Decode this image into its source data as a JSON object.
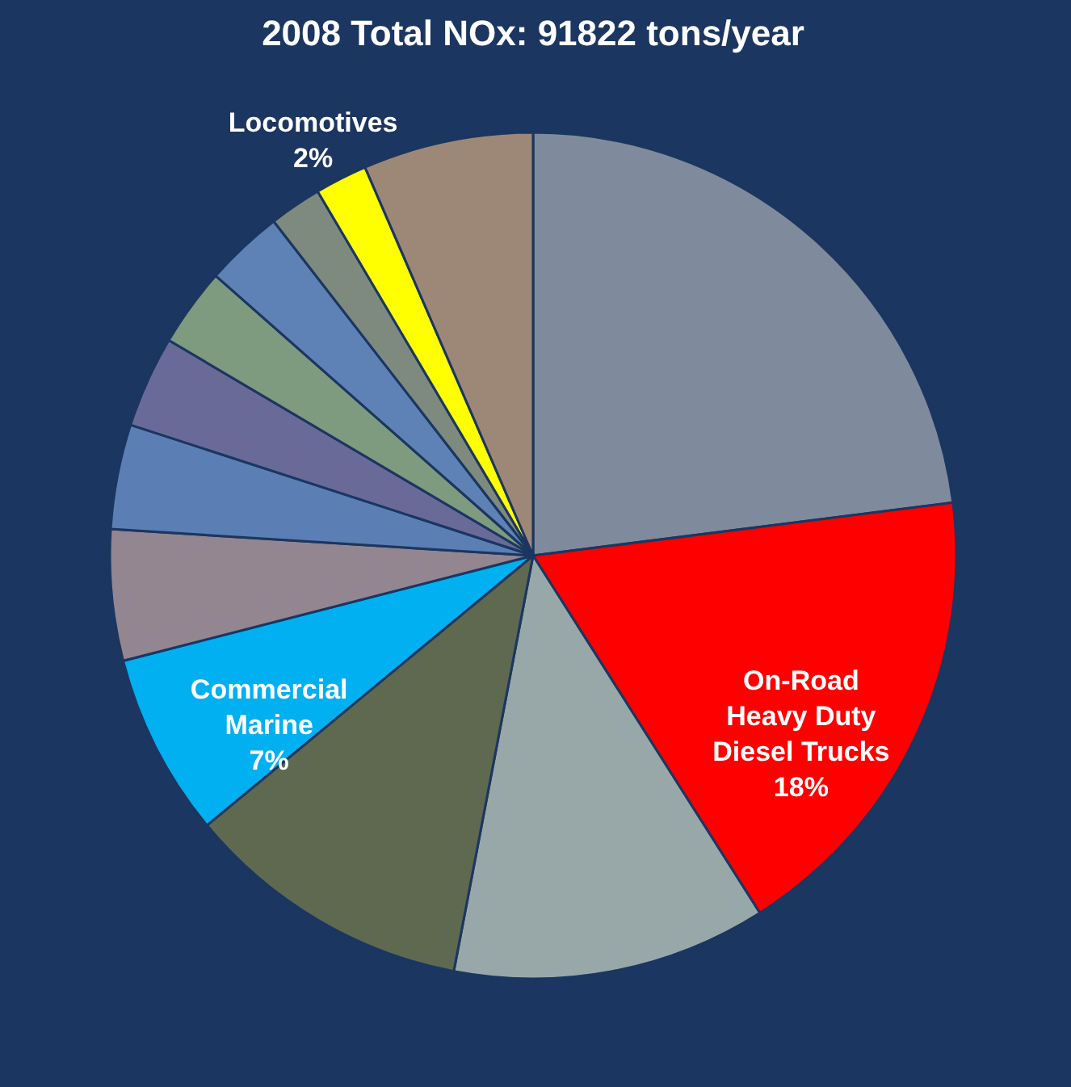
{
  "chart_data": {
    "type": "pie",
    "title": "2008 Total NOx:  91822 tons/year",
    "categories": [
      null,
      "On-Road Heavy Duty Diesel Trucks",
      null,
      null,
      "Commercial Marine",
      null,
      null,
      null,
      null,
      null,
      null,
      "Locomotives",
      null
    ],
    "values": [
      23,
      18,
      12,
      11,
      7,
      5,
      4,
      3.5,
      3,
      3,
      2,
      2,
      6.5
    ],
    "value_labels": [
      null,
      "18%",
      null,
      null,
      "7%",
      null,
      null,
      null,
      null,
      null,
      null,
      "2%",
      null
    ],
    "colors": [
      "#7f8b9c",
      "#ff0000",
      "#98a8a8",
      "#5f6950",
      "#00b0f0",
      "#938690",
      "#5b7fb5",
      "#6a6a99",
      "#7e9a7f",
      "#5e82b5",
      "#7d8a7d",
      "#ffff00",
      "#9d8878"
    ],
    "legend": false
  }
}
